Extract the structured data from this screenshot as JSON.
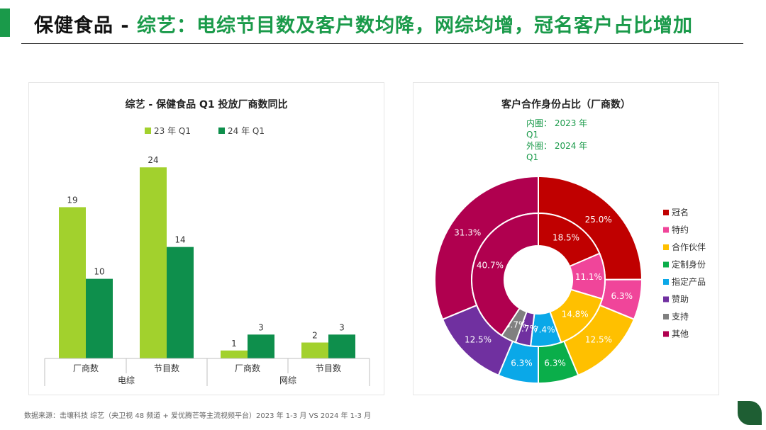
{
  "header": {
    "title_part1": "保健食品 - ",
    "title_part2": "综艺：电综节目数及客户数均降，网综均增，冠名客户占比增加"
  },
  "footer": {
    "source": "数据来源：击壤科技 综艺（央卫视 48 频道 + 爱优腾芒等主流视频平台）2023 年 1-3 月 VS 2024 年 1-3 月"
  },
  "colors": {
    "accent": "#1a9a4a",
    "light_green": "#a2d12d",
    "dark_green": "#0e8f4c"
  },
  "chart_data": [
    {
      "type": "bar",
      "title": "综艺 - 保健食品 Q1 投放厂商数同比",
      "groups": [
        "电综",
        "电综",
        "网综",
        "网综"
      ],
      "group_labels": [
        "电综",
        "网综"
      ],
      "categories": [
        "厂商数",
        "节目数",
        "厂商数",
        "节目数"
      ],
      "series": [
        {
          "name": "23 年 Q1",
          "values": [
            19,
            24,
            1,
            2
          ],
          "color": "#a2d12d"
        },
        {
          "name": "24 年 Q1",
          "values": [
            10,
            14,
            3,
            3
          ],
          "color": "#0e8f4c"
        }
      ],
      "ylim": [
        0,
        25
      ],
      "grid": false,
      "legend": "top-center"
    },
    {
      "type": "pie",
      "title": "客户合作身份占比（厂商数）",
      "annotation_lines": [
        "内圈： 2023 年",
        "Q1",
        "外圈： 2024 年",
        "Q1"
      ],
      "categories": [
        "冠名",
        "特约",
        "合作伙伴",
        "定制身份",
        "指定产品",
        "赞助",
        "支持",
        "其他"
      ],
      "colors": [
        "#c00000",
        "#f0459a",
        "#ffc000",
        "#0aae4a",
        "#0aa8e8",
        "#7030a0",
        "#808080",
        "#b0004f"
      ],
      "inner_2023_values": [
        18.5,
        11.1,
        14.8,
        0,
        7.4,
        3.7,
        3.7,
        40.7
      ],
      "outer_2024_values": [
        25.0,
        6.3,
        12.5,
        6.3,
        6.3,
        12.5,
        0,
        31.3
      ],
      "legend": "right"
    }
  ]
}
